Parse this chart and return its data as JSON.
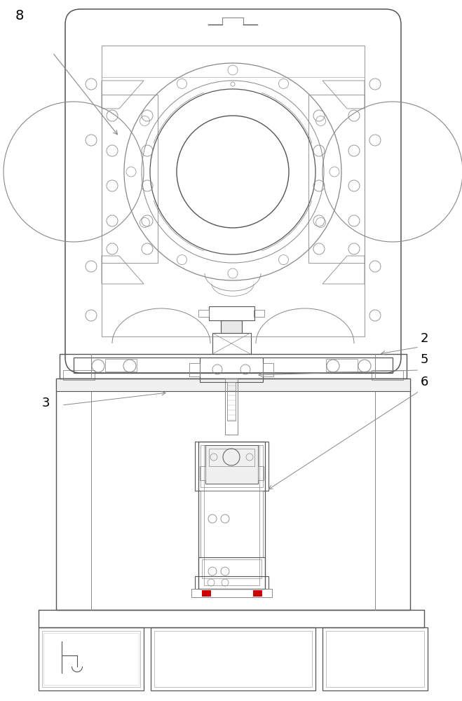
{
  "bg_color": "#ffffff",
  "lc": "#888888",
  "dc": "#555555",
  "llc": "#aaaaaa",
  "vlc": "#cccccc",
  "figsize": [
    6.59,
    10.0
  ],
  "dpi": 100,
  "label_fontsize": 13
}
